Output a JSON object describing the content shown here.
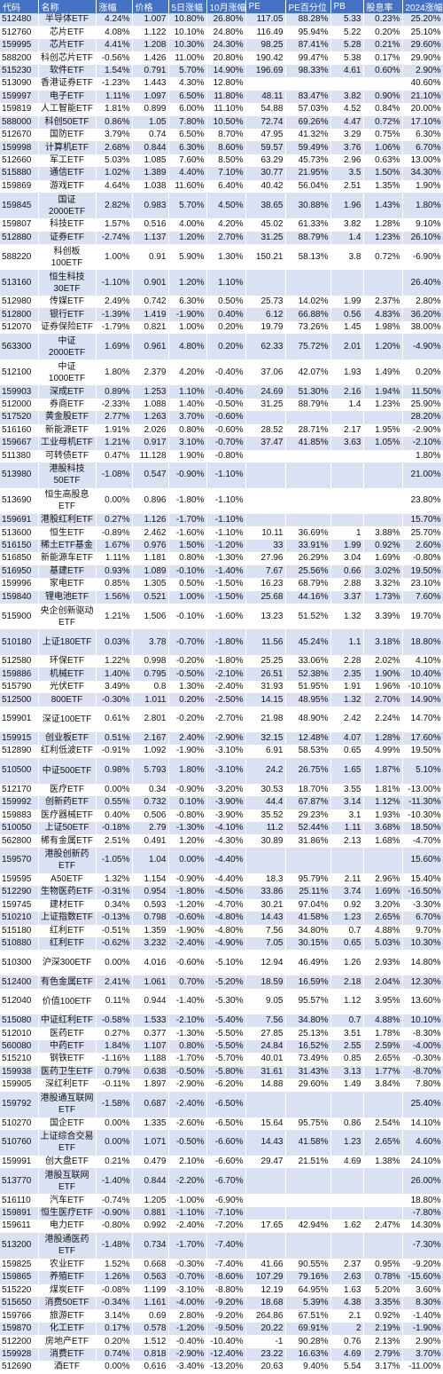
{
  "headers": [
    "代码",
    "名称",
    "涨幅",
    "价格",
    "5日涨幅",
    "10月涨幅",
    "PE",
    "PE百分位",
    "PB",
    "股息率",
    "2024涨幅"
  ],
  "rows": [
    [
      "512480",
      "半导体ETF",
      "4.24%",
      "1.007",
      "10.80%",
      "26.80%",
      "117.05",
      "88.28%",
      "5.33",
      "0.23%",
      "25.20%"
    ],
    [
      "512760",
      "芯片ETF",
      "4.08%",
      "1.122",
      "10.10%",
      "24.80%",
      "116.49",
      "95.94%",
      "5.22",
      "0.20%",
      "25.10%"
    ],
    [
      "159995",
      "芯片ETF",
      "4.41%",
      "1.208",
      "10.30%",
      "24.30%",
      "98.25",
      "87.41%",
      "5.28",
      "0.21%",
      "29.60%"
    ],
    [
      "588200",
      "科创芯片ETF",
      "-0.56%",
      "1.426",
      "11.00%",
      "20.80%",
      "190.42",
      "99.47%",
      "5.38",
      "0.17%",
      "29.90%"
    ],
    [
      "515230",
      "软件ETF",
      "1.54%",
      "0.791",
      "5.70%",
      "14.90%",
      "196.69",
      "98.33%",
      "4.61",
      "0.60%",
      "2.90%"
    ],
    [
      "513090",
      "香港证券ETF",
      "-1.23%",
      "1.443",
      "4.30%",
      "12.80%",
      "",
      "",
      "",
      "",
      "40.60%"
    ],
    [
      "159997",
      "电子ETF",
      "1.11%",
      "1.097",
      "6.50%",
      "11.80%",
      "48.11",
      "83.47%",
      "3.82",
      "0.90%",
      "21.10%"
    ],
    [
      "159819",
      "人工智能ETF",
      "1.81%",
      "0.899",
      "6.00%",
      "11.10%",
      "54.88",
      "57.03%",
      "4.52",
      "0.84%",
      "20.00%"
    ],
    [
      "588000",
      "科创50ETF",
      "0.86%",
      "1.05",
      "7.80%",
      "10.50%",
      "72.74",
      "69.26%",
      "4.47",
      "0.72%",
      "17.10%"
    ],
    [
      "512670",
      "国防ETF",
      "3.79%",
      "0.74",
      "6.50%",
      "8.70%",
      "47.95",
      "41.32%",
      "3.29",
      "0.75%",
      "6.30%"
    ],
    [
      "159998",
      "计算机ETF",
      "2.68%",
      "0.844",
      "6.30%",
      "8.60%",
      "59.57",
      "59.49%",
      "3.76",
      "1.06%",
      "6.70%"
    ],
    [
      "512660",
      "军工ETF",
      "5.03%",
      "1.085",
      "7.60%",
      "8.50%",
      "63.29",
      "45.73%",
      "2.96",
      "0.63%",
      "13.00%"
    ],
    [
      "515880",
      "通信ETF",
      "1.02%",
      "1.389",
      "4.40%",
      "7.10%",
      "30.77",
      "21.95%",
      "3.5",
      "1.50%",
      "34.30%"
    ],
    [
      "159869",
      "游戏ETF",
      "4.64%",
      "1.038",
      "11.60%",
      "6.40%",
      "40.42",
      "56.04%",
      "2.51",
      "1.35%",
      "1.90%"
    ],
    [
      "159845",
      "国证2000ETF",
      "2.82%",
      "0.983",
      "5.70%",
      "4.50%",
      "38.65",
      "30.88%",
      "1.96",
      "1.43%",
      "1.80%"
    ],
    [
      "159807",
      "科技ETF",
      "1.57%",
      "0.516",
      "4.00%",
      "4.20%",
      "45.02",
      "61.33%",
      "3.82",
      "1.28%",
      "9.10%"
    ],
    [
      "512880",
      "证券ETF",
      "-2.74%",
      "1.137",
      "1.20%",
      "2.70%",
      "31.25",
      "88.79%",
      "1.4",
      "1.23%",
      "26.10%"
    ],
    [
      "588220",
      "科创板100ETF",
      "1.00%",
      "0.91",
      "5.90%",
      "1.30%",
      "150.21",
      "58.13%",
      "3.8",
      "0.72%",
      "-6.90%"
    ],
    [
      "513160",
      "恒生科技30ETF",
      "-1.10%",
      "0.901",
      "1.20%",
      "1.10%",
      "",
      "",
      "",
      "",
      "26.40%"
    ],
    [
      "512980",
      "传媒ETF",
      "2.49%",
      "0.742",
      "6.30%",
      "0.50%",
      "25.73",
      "14.02%",
      "1.99",
      "2.37%",
      "2.80%"
    ],
    [
      "512800",
      "银行ETF",
      "-1.39%",
      "1.419",
      "-1.90%",
      "0.40%",
      "6.12",
      "66.88%",
      "0.56",
      "4.83%",
      "36.20%"
    ],
    [
      "512070",
      "证券保险ETF",
      "-1.79%",
      "0.821",
      "1.00%",
      "0.20%",
      "19.79",
      "73.26%",
      "1.45",
      "1.98%",
      "38.00%"
    ],
    [
      "563300",
      "中证2000ETF",
      "1.69%",
      "0.961",
      "4.80%",
      "0.20%",
      "62.33",
      "75.72%",
      "2.01",
      "1.20%",
      "-4.90%"
    ],
    [
      "512100",
      "中证1000ETF",
      "1.80%",
      "2.379",
      "4.20%",
      "-0.40%",
      "37.06",
      "42.07%",
      "1.93",
      "1.49%",
      "0.20%"
    ],
    [
      "159903",
      "深成ETF",
      "0.89%",
      "1.253",
      "1.10%",
      "-0.40%",
      "24.69",
      "51.30%",
      "2.16",
      "1.94%",
      "11.50%"
    ],
    [
      "512000",
      "券商ETF",
      "-2.33%",
      "1.088",
      "1.40%",
      "-0.50%",
      "31.25",
      "88.79%",
      "1.4",
      "1.23%",
      "25.90%"
    ],
    [
      "517520",
      "黄金股ETF",
      "2.77%",
      "1.263",
      "3.70%",
      "-0.60%",
      "",
      "",
      "",
      "",
      "28.20%"
    ],
    [
      "516160",
      "新能源ETF",
      "1.91%",
      "2.026",
      "0.80%",
      "-0.60%",
      "28.52",
      "28.71%",
      "2.17",
      "1.95%",
      "-2.90%"
    ],
    [
      "159667",
      "工业母机ETF",
      "1.21%",
      "0.917",
      "3.10%",
      "-0.70%",
      "37.47",
      "41.85%",
      "3.63",
      "1.05%",
      "-2.10%"
    ],
    [
      "511380",
      "可转债ETF",
      "0.47%",
      "11.128",
      "1.90%",
      "-0.80%",
      "",
      "",
      "",
      "",
      "1.80%"
    ],
    [
      "513980",
      "港股科技50ETF",
      "-1.08%",
      "0.547",
      "-0.90%",
      "-1.10%",
      "",
      "",
      "",
      "",
      "21.00%"
    ],
    [
      "513690",
      "恒生高股息ETF",
      "0.00%",
      "0.896",
      "-1.80%",
      "-1.10%",
      "",
      "",
      "",
      "",
      "23.80%"
    ],
    [
      "159691",
      "港股红利ETF",
      "0.27%",
      "1.126",
      "-1.70%",
      "-1.10%",
      "",
      "",
      "",
      "",
      "15.70%"
    ],
    [
      "513600",
      "恒生ETF",
      "-0.89%",
      "2.462",
      "-1.60%",
      "-1.10%",
      "10.11",
      "36.69%",
      "1",
      "3.88%",
      "25.70%"
    ],
    [
      "516150",
      "稀土ETF基金",
      "1.67%",
      "0.976",
      "1.50%",
      "-1.20%",
      "33",
      "33.91%",
      "1.99",
      "0.92%",
      "2.60%"
    ],
    [
      "516850",
      "新能源车ETF",
      "1.11%",
      "1.181",
      "0.80%",
      "-1.30%",
      "27.96",
      "26.29%",
      "3.04",
      "1.69%",
      "-0.80%"
    ],
    [
      "516950",
      "基建ETF",
      "0.93%",
      "1.089",
      "-0.10%",
      "-1.40%",
      "7.67",
      "25.56%",
      "0.66",
      "3.02%",
      "19.50%"
    ],
    [
      "159996",
      "家电ETF",
      "0.85%",
      "1.305",
      "0.50%",
      "-1.50%",
      "16.23",
      "68.79%",
      "2.88",
      "3.32%",
      "23.10%"
    ],
    [
      "159840",
      "锂电池ETF",
      "1.56%",
      "0.521",
      "1.00%",
      "-1.50%",
      "25.68",
      "44.16%",
      "3.37",
      "1.73%",
      "7.60%"
    ],
    [
      "515900",
      "央企创新驱动ETF",
      "1.21%",
      "1.506",
      "-0.10%",
      "-1.60%",
      "13.23",
      "51.52%",
      "1.32",
      "3.39%",
      "19.70%"
    ],
    [
      "510180",
      "上证180ETF",
      "0.03%",
      "3.78",
      "-0.70%",
      "-1.80%",
      "11.56",
      "45.24%",
      "1.1",
      "3.18%",
      "18.80%"
    ],
    [
      "512580",
      "环保ETF",
      "1.22%",
      "0.998",
      "-0.20%",
      "-1.80%",
      "25.25",
      "33.06%",
      "2.28",
      "2.02%",
      "4.10%"
    ],
    [
      "159886",
      "机械ETF",
      "1.40%",
      "0.795",
      "-0.50%",
      "-2.10%",
      "26.51",
      "52.38%",
      "2.35",
      "1.90%",
      "10.40%"
    ],
    [
      "515790",
      "光伏ETF",
      "3.49%",
      "0.8",
      "1.30%",
      "-2.40%",
      "31.93",
      "51.95%",
      "1.91",
      "1.96%",
      "-10.10%"
    ],
    [
      "512500",
      "800ETF",
      "-0.30%",
      "1.011",
      "0.20%",
      "-2.50%",
      "14.15",
      "48.95%",
      "1.32",
      "2.70%",
      "14.90%"
    ],
    [
      "159901",
      "深证100ETF",
      "0.61%",
      "2.801",
      "-0.20%",
      "-2.70%",
      "21.98",
      "48.90%",
      "2.42",
      "2.24%",
      "14.70%"
    ],
    [
      "159915",
      "创业板ETF",
      "0.51%",
      "2.167",
      "2.40%",
      "-2.90%",
      "32.15",
      "12.48%",
      "4.07",
      "1.28%",
      "17.60%"
    ],
    [
      "512890",
      "红利低波ETF",
      "-0.91%",
      "1.092",
      "-1.90%",
      "-3.10%",
      "6.91",
      "58.53%",
      "0.65",
      "4.99%",
      "19.50%"
    ],
    [
      "510500",
      "中证500ETF",
      "0.98%",
      "5.793",
      "1.80%",
      "-3.10%",
      "24.2",
      "26.75%",
      "1.65",
      "1.87%",
      "5.10%"
    ],
    [
      "512170",
      "医疗ETF",
      "0.00%",
      "0.34",
      "-0.90%",
      "-3.20%",
      "30.53",
      "18.70%",
      "3.55",
      "1.81%",
      "-13.00%"
    ],
    [
      "159992",
      "创新药ETF",
      "0.55%",
      "0.732",
      "0.10%",
      "-3.90%",
      "44.4",
      "67.87%",
      "3.14",
      "1.12%",
      "-11.30%"
    ],
    [
      "159883",
      "医疗器械ETF",
      "0.40%",
      "0.506",
      "-0.80%",
      "-3.90%",
      "35.52",
      "29.23%",
      "3.1",
      "1.93%",
      "-10.30%"
    ],
    [
      "510050",
      "上证50ETF",
      "-0.18%",
      "2.79",
      "-1.30%",
      "-4.10%",
      "11.2",
      "52.44%",
      "1.11",
      "3.68%",
      "18.50%"
    ],
    [
      "562800",
      "稀有金属ETF",
      "2.51%",
      "0.491",
      "1.20%",
      "-4.30%",
      "30.89",
      "31.86%",
      "2.13",
      "1.68%",
      "-4.70%"
    ],
    [
      "159570",
      "港股创新药ETF",
      "-1.05%",
      "1.04",
      "0.00%",
      "-4.40%",
      "",
      "",
      "",
      "",
      "15.60%"
    ],
    [
      "159595",
      "A50ETF",
      "1.32%",
      "1.154",
      "-0.90%",
      "-4.40%",
      "18.3",
      "95.79%",
      "2.11",
      "2.96%",
      "15.40%"
    ],
    [
      "512290",
      "生物医药ETF",
      "-0.31%",
      "0.954",
      "-1.80%",
      "-4.50%",
      "33.86",
      "25.11%",
      "3.74",
      "1.69%",
      "-16.50%"
    ],
    [
      "159745",
      "建材ETF",
      "0.34%",
      "0.593",
      "-1.20%",
      "-4.70%",
      "30.21",
      "97.04%",
      "0.92",
      "3.20%",
      "-3.30%"
    ],
    [
      "510210",
      "上证指数ETF",
      "-0.13%",
      "0.798",
      "-0.60%",
      "-4.80%",
      "14.43",
      "41.58%",
      "1.23",
      "2.65%",
      "6.70%"
    ],
    [
      "515180",
      "红利ETF",
      "-0.51%",
      "1.359",
      "-1.90%",
      "-4.80%",
      "7.56",
      "34.80%",
      "0.7",
      "4.88%",
      "9.70%"
    ],
    [
      "510880",
      "红利ETF",
      "-0.62%",
      "3.232",
      "-2.40%",
      "-4.90%",
      "7.05",
      "30.15%",
      "0.65",
      "5.03%",
      "10.30%"
    ],
    [
      "510300",
      "沪深300ETF",
      "0.00%",
      "4.016",
      "-0.60%",
      "-5.10%",
      "12.94",
      "46.49%",
      "1.26",
      "2.93%",
      "14.80%"
    ],
    [
      "512400",
      "有色金属ETF",
      "2.41%",
      "1.061",
      "0.70%",
      "-5.20%",
      "18.59",
      "16.59%",
      "2.18",
      "2.04%",
      "12.30%"
    ],
    [
      "512040",
      "价值100ETF",
      "0.11%",
      "0.944",
      "-1.40%",
      "-5.30%",
      "9.05",
      "95.57%",
      "1.12",
      "3.95%",
      "13.60%"
    ],
    [
      "515080",
      "中证红利ETF",
      "-0.58%",
      "1.533",
      "-2.10%",
      "-5.40%",
      "7.56",
      "34.80%",
      "0.7",
      "4.88%",
      "10.10%"
    ],
    [
      "512010",
      "医药ETF",
      "0.27%",
      "0.377",
      "-1.30%",
      "-5.50%",
      "27.85",
      "25.13%",
      "3.51",
      "1.78%",
      "-8.30%"
    ],
    [
      "560080",
      "中药ETF",
      "1.84%",
      "1.107",
      "0.80%",
      "-5.50%",
      "24.84",
      "16.52%",
      "2.55",
      "2.59%",
      "-4.00%"
    ],
    [
      "515210",
      "钢铁ETF",
      "-1.16%",
      "1.188",
      "-1.70%",
      "-5.70%",
      "40.01",
      "73.49%",
      "0.85",
      "2.65%",
      "-0.30%"
    ],
    [
      "159938",
      "医药卫生ETF",
      "0.79%",
      "0.638",
      "-0.50%",
      "-5.80%",
      "31.61",
      "31.43%",
      "3.13",
      "1.77%",
      "-8.70%"
    ],
    [
      "159905",
      "深红利ETF",
      "-0.11%",
      "1.897",
      "-2.90%",
      "-6.20%",
      "14.88",
      "29.60%",
      "1.49",
      "3.84%",
      "7.80%"
    ],
    [
      "159792",
      "港股通互联网ETF",
      "-1.58%",
      "0.687",
      "-2.40%",
      "-6.50%",
      "",
      "",
      "",
      "",
      "25.40%"
    ],
    [
      "510270",
      "国企ETF",
      "0.00%",
      "1.335",
      "-2.60%",
      "-6.50%",
      "15.64",
      "95.75%",
      "0.86",
      "2.54%",
      "14.10%"
    ],
    [
      "510760",
      "上证综合交易ETF",
      "0.00%",
      "1.071",
      "-0.50%",
      "-6.60%",
      "14.43",
      "41.58%",
      "1.23",
      "2.65%",
      "4.60%"
    ],
    [
      "159991",
      "创大盘ETF",
      "0.21%",
      "0.479",
      "2.10%",
      "-6.60%",
      "29.47",
      "21.51%",
      "4.69",
      "1.38%",
      "24.10%"
    ],
    [
      "513770",
      "港股互联网ETF",
      "-1.40%",
      "0.844",
      "-2.20%",
      "-6.70%",
      "",
      "",
      "",
      "",
      "26.00%"
    ],
    [
      "516110",
      "汽车ETF",
      "-0.74%",
      "1.205",
      "-1.00%",
      "-6.90%",
      "",
      "",
      "",
      "",
      "18.80%"
    ],
    [
      "159891",
      "恒生医疗ETF",
      "-0.90%",
      "0.881",
      "-1.10%",
      "-7.10%",
      "",
      "",
      "",
      "",
      "-7.80%"
    ],
    [
      "159611",
      "电力ETF",
      "-0.80%",
      "0.992",
      "-2.40%",
      "-7.20%",
      "17.65",
      "42.94%",
      "1.62",
      "2.47%",
      "14.30%"
    ],
    [
      "513200",
      "港股通医药ETF",
      "-1.48%",
      "0.734",
      "-1.70%",
      "-7.40%",
      "",
      "",
      "",
      "",
      "-7.30%"
    ],
    [
      "159825",
      "农业ETF",
      "1.52%",
      "0.668",
      "-0.30%",
      "-7.40%",
      "41.66",
      "90.55%",
      "2.37",
      "0.95%",
      "-9.20%"
    ],
    [
      "159865",
      "养殖ETF",
      "1.26%",
      "0.563",
      "-0.70%",
      "-8.60%",
      "107.29",
      "79.16%",
      "2.63",
      "0.78%",
      "-15.60%"
    ],
    [
      "515220",
      "煤炭ETF",
      "-0.08%",
      "1.199",
      "-3.10%",
      "-8.80%",
      "12.19",
      "64.95%",
      "1.63",
      "5.20%",
      "3.60%"
    ],
    [
      "515650",
      "消费50ETF",
      "-0.34%",
      "1.161",
      "-4.00%",
      "-9.20%",
      "18.68",
      "5.39%",
      "4.38",
      "3.35%",
      "8.30%"
    ],
    [
      "159766",
      "旅游ETF",
      "3.14%",
      "0.69",
      "2.80%",
      "-9.20%",
      "264.86",
      "67.51%",
      "2.1",
      "0.92%",
      "-1.40%"
    ],
    [
      "159870",
      "化工ETF",
      "0.17%",
      "0.578",
      "-1.20%",
      "-9.50%",
      "20.22",
      "69.91%",
      "2",
      "2.19%",
      "-1.90%"
    ],
    [
      "512200",
      "房地产ETF",
      "0.20%",
      "1.512",
      "-0.40%",
      "-10.40%",
      "-1",
      "90.28%",
      "0.76",
      "2.13%",
      "2.90%"
    ],
    [
      "159928",
      "消费ETF",
      "0.74%",
      "0.818",
      "-2.90%",
      "-12.40%",
      "23.22",
      "16.63%",
      "4.69",
      "2.79%",
      "3.70%"
    ],
    [
      "512690",
      "酒ETF",
      "0.00%",
      "0.616",
      "-3.40%",
      "-13.20%",
      "20.63",
      "9.40%",
      "5.54",
      "3.17%",
      "-11.00%"
    ]
  ]
}
